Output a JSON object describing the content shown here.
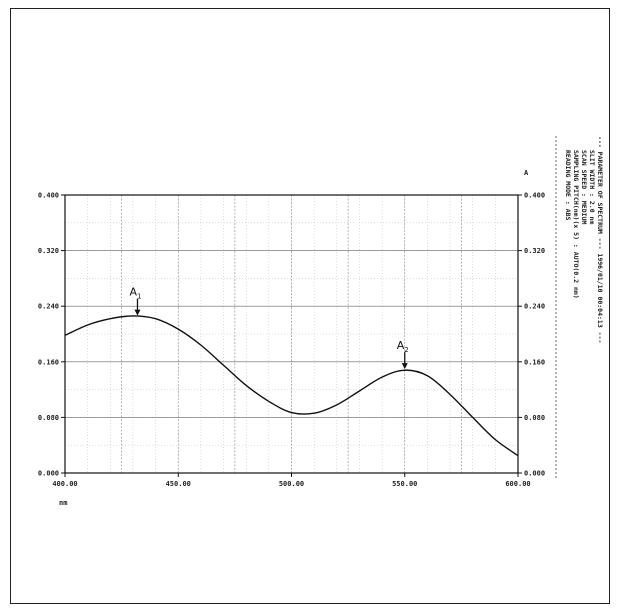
{
  "chart_data": {
    "type": "line",
    "x": [
      400,
      410,
      420,
      430,
      440,
      450,
      460,
      470,
      480,
      490,
      500,
      510,
      520,
      530,
      540,
      550,
      560,
      570,
      580,
      590,
      600
    ],
    "series": [
      {
        "values": [
          0.198,
          0.213,
          0.222,
          0.226,
          0.222,
          0.207,
          0.184,
          0.155,
          0.126,
          0.103,
          0.087,
          0.086,
          0.098,
          0.118,
          0.138,
          0.148,
          0.14,
          0.113,
          0.08,
          0.048,
          0.025
        ]
      }
    ],
    "xlabel": "nm",
    "ylabel": "A",
    "xlim": [
      400,
      600
    ],
    "ylim": [
      0.0,
      0.4
    ],
    "x_ticks": [
      "400.00",
      "450.00",
      "500.00",
      "550.00",
      "600.00"
    ],
    "y_ticks_left": [
      "0.000",
      "0.080",
      "0.160",
      "0.240",
      "0.320",
      "0.400"
    ],
    "y_ticks_right": [
      "0.000",
      "0.080",
      "0.160",
      "0.240",
      "0.320",
      "0.400"
    ],
    "grid": true,
    "annotations": [
      {
        "label": "A",
        "sub": "1",
        "x": 432,
        "y": 0.225
      },
      {
        "label": "A",
        "sub": "2",
        "x": 550,
        "y": 0.148
      }
    ]
  },
  "parameters": {
    "header": "--- PARAMETER OF SPECTRUM --- 1996/01/10 00:04:13 ---",
    "lines": [
      "READING MODE   : ABS",
      "SAMPLING PITCH(nm)(x 5) : AUTO(0.2 nm)",
      "SCAN SPEED     : MEDIUM",
      "SLIT WIDTH     : 2.0 nm"
    ]
  }
}
